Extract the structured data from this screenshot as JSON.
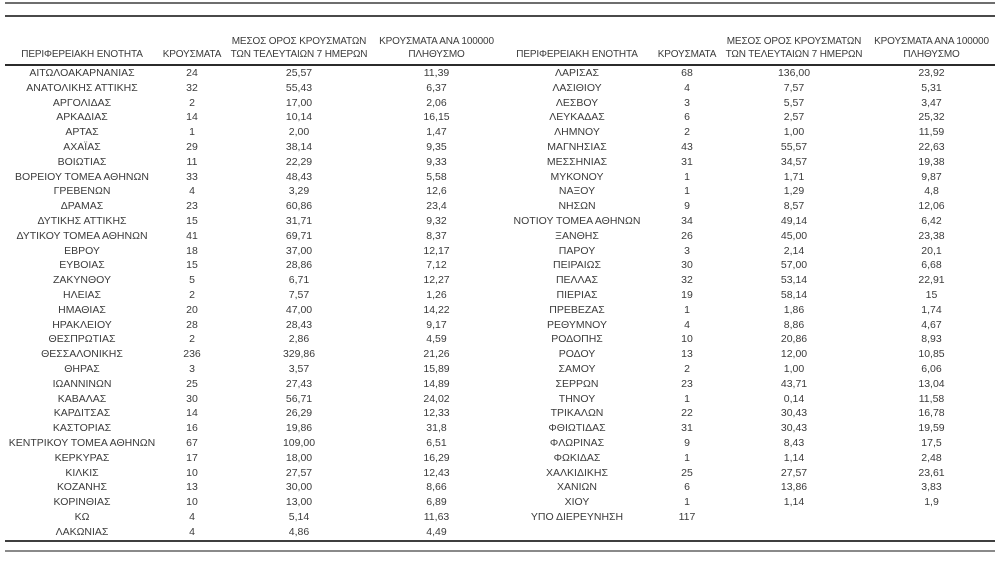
{
  "table": {
    "column_headers": [
      "ΠΕΡΙΦΕΡΕΙΑΚΗ ΕΝΟΤΗΤΑ",
      "ΚΡΟΥΣΜΑΤΑ",
      "ΜΕΣΟΣ ΟΡΟΣ ΚΡΟΥΣΜΑΤΩΝ ΤΩΝ ΤΕΛΕΥΤΑΙΩΝ 7 ΗΜΕΡΩΝ",
      "ΚΡΟΥΣΜΑΤΑ ΑΝΑ 100000 ΠΛΗΘΥΣΜΟ"
    ],
    "left_rows": [
      [
        "ΑΙΤΩΛΟΑΚΑΡΝΑΝΙΑΣ",
        "24",
        "25,57",
        "11,39"
      ],
      [
        "ΑΝΑΤΟΛΙΚΗΣ ΑΤΤΙΚΗΣ",
        "32",
        "55,43",
        "6,37"
      ],
      [
        "ΑΡΓΟΛΙΔΑΣ",
        "2",
        "17,00",
        "2,06"
      ],
      [
        "ΑΡΚΑΔΙΑΣ",
        "14",
        "10,14",
        "16,15"
      ],
      [
        "ΑΡΤΑΣ",
        "1",
        "2,00",
        "1,47"
      ],
      [
        "ΑΧΑΪΑΣ",
        "29",
        "38,14",
        "9,35"
      ],
      [
        "ΒΟΙΩΤΙΑΣ",
        "11",
        "22,29",
        "9,33"
      ],
      [
        "ΒΟΡΕΙΟΥ ΤΟΜΕΑ ΑΘΗΝΩΝ",
        "33",
        "48,43",
        "5,58"
      ],
      [
        "ΓΡΕΒΕΝΩΝ",
        "4",
        "3,29",
        "12,6"
      ],
      [
        "ΔΡΑΜΑΣ",
        "23",
        "60,86",
        "23,4"
      ],
      [
        "ΔΥΤΙΚΗΣ ΑΤΤΙΚΗΣ",
        "15",
        "31,71",
        "9,32"
      ],
      [
        "ΔΥΤΙΚΟΥ ΤΟΜΕΑ ΑΘΗΝΩΝ",
        "41",
        "69,71",
        "8,37"
      ],
      [
        "ΕΒΡΟΥ",
        "18",
        "37,00",
        "12,17"
      ],
      [
        "ΕΥΒΟΙΑΣ",
        "15",
        "28,86",
        "7,12"
      ],
      [
        "ΖΑΚΥΝΘΟΥ",
        "5",
        "6,71",
        "12,27"
      ],
      [
        "ΗΛΕΙΑΣ",
        "2",
        "7,57",
        "1,26"
      ],
      [
        "ΗΜΑΘΙΑΣ",
        "20",
        "47,00",
        "14,22"
      ],
      [
        "ΗΡΑΚΛΕΙΟΥ",
        "28",
        "28,43",
        "9,17"
      ],
      [
        "ΘΕΣΠΡΩΤΙΑΣ",
        "2",
        "2,86",
        "4,59"
      ],
      [
        "ΘΕΣΣΑΛΟΝΙΚΗΣ",
        "236",
        "329,86",
        "21,26"
      ],
      [
        "ΘΗΡΑΣ",
        "3",
        "3,57",
        "15,89"
      ],
      [
        "ΙΩΑΝΝΙΝΩΝ",
        "25",
        "27,43",
        "14,89"
      ],
      [
        "ΚΑΒΑΛΑΣ",
        "30",
        "56,71",
        "24,02"
      ],
      [
        "ΚΑΡΔΙΤΣΑΣ",
        "14",
        "26,29",
        "12,33"
      ],
      [
        "ΚΑΣΤΟΡΙΑΣ",
        "16",
        "19,86",
        "31,8"
      ],
      [
        "ΚΕΝΤΡΙΚΟΥ ΤΟΜΕΑ ΑΘΗΝΩΝ",
        "67",
        "109,00",
        "6,51"
      ],
      [
        "ΚΕΡΚΥΡΑΣ",
        "17",
        "18,00",
        "16,29"
      ],
      [
        "ΚΙΛΚΙΣ",
        "10",
        "27,57",
        "12,43"
      ],
      [
        "ΚΟΖΑΝΗΣ",
        "13",
        "30,00",
        "8,66"
      ],
      [
        "ΚΟΡΙΝΘΙΑΣ",
        "10",
        "13,00",
        "6,89"
      ],
      [
        "ΚΩ",
        "4",
        "5,14",
        "11,63"
      ],
      [
        "ΛΑΚΩΝΙΑΣ",
        "4",
        "4,86",
        "4,49"
      ]
    ],
    "right_rows": [
      [
        "ΛΑΡΙΣΑΣ",
        "68",
        "136,00",
        "23,92"
      ],
      [
        "ΛΑΣΙΘΙΟΥ",
        "4",
        "7,57",
        "5,31"
      ],
      [
        "ΛΕΣΒΟΥ",
        "3",
        "5,57",
        "3,47"
      ],
      [
        "ΛΕΥΚΑΔΑΣ",
        "6",
        "2,57",
        "25,32"
      ],
      [
        "ΛΗΜΝΟΥ",
        "2",
        "1,00",
        "11,59"
      ],
      [
        "ΜΑΓΝΗΣΙΑΣ",
        "43",
        "55,57",
        "22,63"
      ],
      [
        "ΜΕΣΣΗΝΙΑΣ",
        "31",
        "34,57",
        "19,38"
      ],
      [
        "ΜΥΚΟΝΟΥ",
        "1",
        "1,71",
        "9,87"
      ],
      [
        "ΝΑΞΟΥ",
        "1",
        "1,29",
        "4,8"
      ],
      [
        "ΝΗΣΩΝ",
        "9",
        "8,57",
        "12,06"
      ],
      [
        "ΝΟΤΙΟΥ ΤΟΜΕΑ ΑΘΗΝΩΝ",
        "34",
        "49,14",
        "6,42"
      ],
      [
        "ΞΑΝΘΗΣ",
        "26",
        "45,00",
        "23,38"
      ],
      [
        "ΠΑΡΟΥ",
        "3",
        "2,14",
        "20,1"
      ],
      [
        "ΠΕΙΡΑΙΩΣ",
        "30",
        "57,00",
        "6,68"
      ],
      [
        "ΠΕΛΛΑΣ",
        "32",
        "53,14",
        "22,91"
      ],
      [
        "ΠΙΕΡΙΑΣ",
        "19",
        "58,14",
        "15"
      ],
      [
        "ΠΡΕΒΕΖΑΣ",
        "1",
        "1,86",
        "1,74"
      ],
      [
        "ΡΕΘΥΜΝΟΥ",
        "4",
        "8,86",
        "4,67"
      ],
      [
        "ΡΟΔΟΠΗΣ",
        "10",
        "20,86",
        "8,93"
      ],
      [
        "ΡΟΔΟΥ",
        "13",
        "12,00",
        "10,85"
      ],
      [
        "ΣΑΜΟΥ",
        "2",
        "1,00",
        "6,06"
      ],
      [
        "ΣΕΡΡΩΝ",
        "23",
        "43,71",
        "13,04"
      ],
      [
        "ΤΗΝΟΥ",
        "1",
        "0,14",
        "11,58"
      ],
      [
        "ΤΡΙΚΑΛΩΝ",
        "22",
        "30,43",
        "16,78"
      ],
      [
        "ΦΘΙΩΤΙΔΑΣ",
        "31",
        "30,43",
        "19,59"
      ],
      [
        "ΦΛΩΡΙΝΑΣ",
        "9",
        "8,43",
        "17,5"
      ],
      [
        "ΦΩΚΙΔΑΣ",
        "1",
        "1,14",
        "2,48"
      ],
      [
        "ΧΑΛΚΙΔΙΚΗΣ",
        "25",
        "27,57",
        "23,61"
      ],
      [
        "ΧΑΝΙΩΝ",
        "6",
        "13,86",
        "3,83"
      ],
      [
        "ΧΙΟΥ",
        "1",
        "1,14",
        "1,9"
      ],
      [
        "ΥΠΟ ΔΙΕΡΕΥΝΗΣΗ",
        "117",
        "",
        ""
      ]
    ]
  },
  "colors": {
    "text": "#3b3b3b",
    "rule_top_1": "#6e6e6e",
    "rule_top_2": "#4a4a4a",
    "rule_header": "#2b2b2b",
    "rule_last_row": "#3f3f3f",
    "rule_bottom": "#8a8a8a"
  }
}
